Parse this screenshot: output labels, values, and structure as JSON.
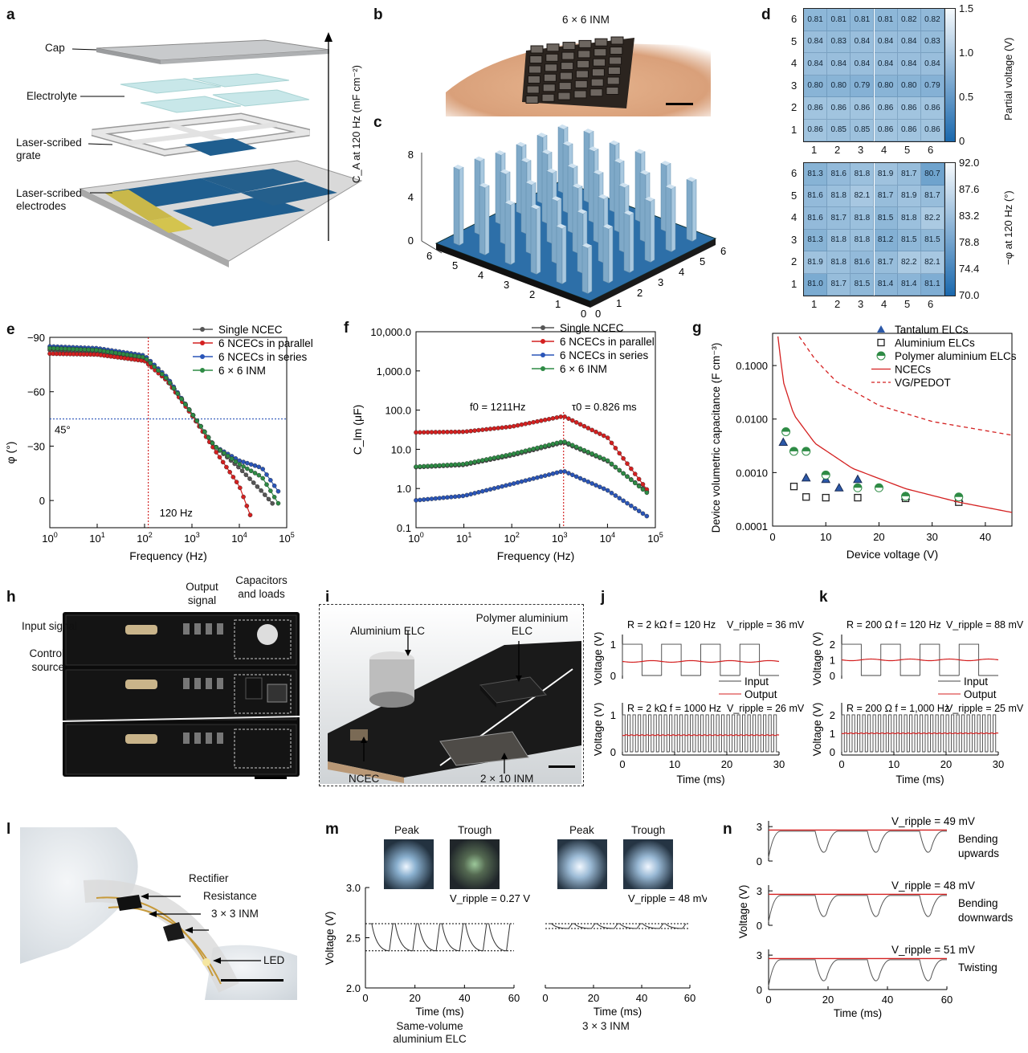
{
  "panels": {
    "a": "a",
    "b": "b",
    "c": "c",
    "d": "d",
    "e": "e",
    "f": "f",
    "g": "g",
    "h": "h",
    "i": "i",
    "j": "j",
    "k": "k",
    "l": "l",
    "m": "m",
    "n": "n"
  },
  "panel_a": {
    "labels": [
      "Cap",
      "Electrolyte",
      "Laser-scribed grate",
      "Laser-scribed electrodes"
    ]
  },
  "panel_b": {
    "title": "6 × 6 INM"
  },
  "panel_c": {
    "zlabel": "C_A at 120 Hz (mF cm⁻²)",
    "zticks": [
      "0",
      "4",
      "8"
    ],
    "xticks": [
      "0",
      "1",
      "2",
      "3",
      "4",
      "5",
      "6"
    ],
    "yticks": [
      "0",
      "1",
      "2",
      "3",
      "4",
      "5",
      "6"
    ]
  },
  "panel_d": {
    "top": {
      "rows": [
        "6",
        "5",
        "4",
        "3",
        "2",
        "1"
      ],
      "cols": [
        "1",
        "2",
        "3",
        "4",
        "5",
        "6"
      ],
      "values": [
        [
          "0.81",
          "0.81",
          "0.81",
          "0.81",
          "0.82",
          "0.82"
        ],
        [
          "0.84",
          "0.83",
          "0.84",
          "0.84",
          "0.84",
          "0.83"
        ],
        [
          "0.84",
          "0.84",
          "0.84",
          "0.84",
          "0.84",
          "0.84"
        ],
        [
          "0.80",
          "0.80",
          "0.79",
          "0.80",
          "0.80",
          "0.79"
        ],
        [
          "0.86",
          "0.86",
          "0.86",
          "0.86",
          "0.86",
          "0.86"
        ],
        [
          "0.86",
          "0.85",
          "0.85",
          "0.86",
          "0.86",
          "0.86"
        ]
      ],
      "colorbar_label": "Partial voltage (V)",
      "colorbar_ticks": [
        "1.5",
        "1.0",
        "0.5",
        "0"
      ]
    },
    "bottom": {
      "rows": [
        "6",
        "5",
        "4",
        "3",
        "2",
        "1"
      ],
      "cols": [
        "1",
        "2",
        "3",
        "4",
        "5",
        "6"
      ],
      "values": [
        [
          "81.3",
          "81.6",
          "81.8",
          "81.9",
          "81.7",
          "80.7"
        ],
        [
          "81.6",
          "81.8",
          "82.1",
          "81.7",
          "81.9",
          "81.7"
        ],
        [
          "81.6",
          "81.7",
          "81.8",
          "81.5",
          "81.8",
          "82.2"
        ],
        [
          "81.3",
          "81.8",
          "81.8",
          "81.2",
          "81.5",
          "81.5"
        ],
        [
          "81.9",
          "81.8",
          "81.6",
          "81.7",
          "82.2",
          "82.1"
        ],
        [
          "81.0",
          "81.7",
          "81.5",
          "81.4",
          "81.4",
          "81.1"
        ]
      ],
      "colorbar_label": "−φ at 120 Hz (°)",
      "colorbar_ticks": [
        "92.0",
        "87.6",
        "83.2",
        "78.8",
        "74.4",
        "70.0"
      ]
    }
  },
  "chart_data": [
    {
      "type": "line",
      "panel": "e",
      "xlabel": "Frequency (Hz)",
      "ylabel": "φ (°)",
      "xscale": "log",
      "xlim": [
        1,
        100000
      ],
      "ylim": [
        15,
        -90
      ],
      "yticks": [
        "−90",
        "−60",
        "−30",
        "0"
      ],
      "annotations": [
        "45°",
        "120 Hz"
      ],
      "series": [
        {
          "name": "Single NCEC",
          "color": "#555555",
          "x": [
            1,
            10,
            100,
            300,
            1000,
            3000,
            10000,
            30000,
            60000
          ],
          "y": [
            -83,
            -82,
            -78,
            -67,
            -48,
            -30,
            -18,
            -5,
            4
          ]
        },
        {
          "name": "6 NCECs in parallel",
          "color": "#d42020",
          "x": [
            1,
            10,
            100,
            300,
            1000,
            3000,
            10000,
            20000
          ],
          "y": [
            -81,
            -80.5,
            -77,
            -66,
            -47,
            -28,
            -8,
            13
          ]
        },
        {
          "name": "6 NCECs in series",
          "color": "#2a55b8",
          "x": [
            1,
            10,
            100,
            300,
            1000,
            3000,
            10000,
            30000,
            80000
          ],
          "y": [
            -85,
            -84,
            -80,
            -68,
            -48,
            -30,
            -22,
            -18,
            -2
          ]
        },
        {
          "name": "6 × 6 INM",
          "color": "#2e8b45",
          "x": [
            1,
            10,
            100,
            300,
            1000,
            3000,
            10000,
            30000,
            80000
          ],
          "y": [
            -84,
            -83,
            -79,
            -67,
            -48,
            -30,
            -20,
            -13,
            5
          ]
        }
      ]
    },
    {
      "type": "line",
      "panel": "f",
      "xlabel": "Frequency (Hz)",
      "ylabel": "C_lm (μF)",
      "xscale": "log",
      "yscale": "log",
      "xlim": [
        1,
        100000
      ],
      "ylim": [
        0.1,
        10000
      ],
      "yticks": [
        "0.1",
        "1.0",
        "10.0",
        "100.0",
        "1,000.0",
        "10,000.0"
      ],
      "annotations": [
        "f0 = 1211Hz",
        "τ0 = 0.826 ms"
      ],
      "series": [
        {
          "name": "Single NCEC",
          "color": "#555555",
          "x": [
            1,
            10,
            100,
            1211,
            10000,
            80000
          ],
          "y": [
            3.5,
            4,
            7,
            15,
            5,
            0.7
          ]
        },
        {
          "name": "6 NCECs in parallel",
          "color": "#d42020",
          "x": [
            1,
            10,
            100,
            1211,
            10000,
            80000
          ],
          "y": [
            27,
            28,
            38,
            70,
            20,
            0.7
          ]
        },
        {
          "name": "6 NCECs in series",
          "color": "#2a55b8",
          "x": [
            1,
            10,
            100,
            1211,
            10000,
            80000
          ],
          "y": [
            0.5,
            0.65,
            1.3,
            2.8,
            0.9,
            0.17
          ]
        },
        {
          "name": "6 × 6 INM",
          "color": "#2e8b45",
          "x": [
            1,
            10,
            100,
            1211,
            10000,
            80000
          ],
          "y": [
            3.6,
            4.2,
            7.5,
            16,
            5.2,
            0.65
          ]
        }
      ]
    },
    {
      "type": "scatter",
      "panel": "g",
      "xlabel": "Device voltage (V)",
      "ylabel": "Device volumetric capacitance (F cm⁻³)",
      "yscale": "log",
      "xlim": [
        0,
        45
      ],
      "ylim": [
        0.0001,
        0.4
      ],
      "yticks": [
        "0.0001",
        "0.0010",
        "0.0100",
        "0.1000"
      ],
      "xticks": [
        "0",
        "10",
        "20",
        "30",
        "40"
      ],
      "series": [
        {
          "name": "Tantalum ELCs",
          "marker": "triangle",
          "x": [
            2,
            6.3,
            10,
            12.5,
            16,
            25,
            35
          ],
          "y": [
            0.0037,
            0.0008,
            0.00075,
            0.00052,
            0.00075,
            0.00036,
            0.00033
          ]
        },
        {
          "name": "Aluminium ELCs",
          "marker": "square",
          "x": [
            4,
            6.3,
            10,
            16,
            25,
            35
          ],
          "y": [
            0.00055,
            0.00035,
            0.00034,
            0.00034,
            0.00033,
            0.00028
          ]
        },
        {
          "name": "Polymer aluminium ELCs",
          "marker": "circle",
          "x": [
            2.5,
            4,
            6.3,
            10,
            16,
            20,
            25,
            35
          ],
          "y": [
            0.0058,
            0.0025,
            0.0025,
            0.0009,
            0.00052,
            0.00052,
            0.00036,
            0.00035
          ]
        },
        {
          "name": "NCECs",
          "line": "solid",
          "x": [
            1,
            2,
            4,
            8,
            15,
            25,
            35,
            45
          ],
          "y": [
            0.35,
            0.05,
            0.012,
            0.0035,
            0.0012,
            0.0005,
            0.00028,
            0.00018
          ]
        },
        {
          "name": "VG/PEDOT",
          "line": "dashed",
          "x": [
            5,
            8,
            12,
            20,
            30,
            45
          ],
          "y": [
            0.35,
            0.13,
            0.05,
            0.018,
            0.009,
            0.005
          ]
        }
      ]
    }
  ],
  "panel_h": {
    "labels": [
      "Input signal",
      "Control source",
      "Output signal",
      "Capacitors and loads"
    ]
  },
  "panel_i": {
    "labels": [
      "Aluminium ELC",
      "Polymer aluminium ELC",
      "NCEC",
      "2 × 10 INM"
    ]
  },
  "panel_j": {
    "top": {
      "params": "R = 2 kΩ   f = 120 Hz",
      "ripple": "V_ripple = 36 mV"
    },
    "bottom": {
      "params": "R = 2 kΩ   f = 1000 Hz",
      "ripple": "V_ripple = 26 mV"
    },
    "legend": [
      "Input",
      "Output"
    ],
    "ylabel": "Voltage (V)",
    "xlabel": "Time (ms)",
    "xticks": [
      "0",
      "10",
      "20",
      "30"
    ],
    "yticks": [
      "0",
      "1"
    ]
  },
  "panel_k": {
    "top": {
      "params": "R = 200 Ω  f = 120 Hz",
      "ripple": "V_ripple = 88 mV"
    },
    "bottom": {
      "params": "R = 200 Ω  f = 1,000 Hz",
      "ripple": "V_ripple = 25 mV"
    },
    "legend": [
      "Input",
      "Output"
    ],
    "ylabel": "Voltage (V)",
    "xlabel": "Time (ms)",
    "xticks": [
      "0",
      "10",
      "20",
      "30"
    ],
    "yticks": [
      "0",
      "1",
      "2"
    ]
  },
  "panel_l": {
    "labels": [
      "Rectifier",
      "Resistance",
      "3 × 3 INM",
      "LED"
    ]
  },
  "panel_m": {
    "peak": "Peak",
    "trough": "Trough",
    "left_ripple": "V_ripple = 0.27 V",
    "right_ripple": "V_ripple = 48 mV",
    "ylabel": "Voltage (V)",
    "xlabel": "Time (ms)",
    "yticks": [
      "2.0",
      "2.5",
      "3.0"
    ],
    "xticks": [
      "0",
      "20",
      "40",
      "60"
    ],
    "left_caption": "Same-volume aluminium ELC",
    "right_caption": "3 × 3 INM"
  },
  "panel_n": {
    "rows": [
      {
        "ripple": "V_ripple = 49 mV",
        "label": "Bending upwards"
      },
      {
        "ripple": "V_ripple = 48 mV",
        "label": "Bending downwards"
      },
      {
        "ripple": "V_ripple = 51 mV",
        "label": "Twisting"
      }
    ],
    "ylabel": "Voltage (V)",
    "xlabel": "Time (ms)",
    "yticks": [
      "0",
      "3"
    ],
    "xticks": [
      "0",
      "20",
      "40",
      "60"
    ]
  },
  "colors": {
    "heatmap_light": "#e8f1f8",
    "heatmap_dark": "#1e6fb0",
    "red": "#d42020",
    "blue": "#2a55b8",
    "green": "#2e8b45",
    "grey": "#555555"
  }
}
